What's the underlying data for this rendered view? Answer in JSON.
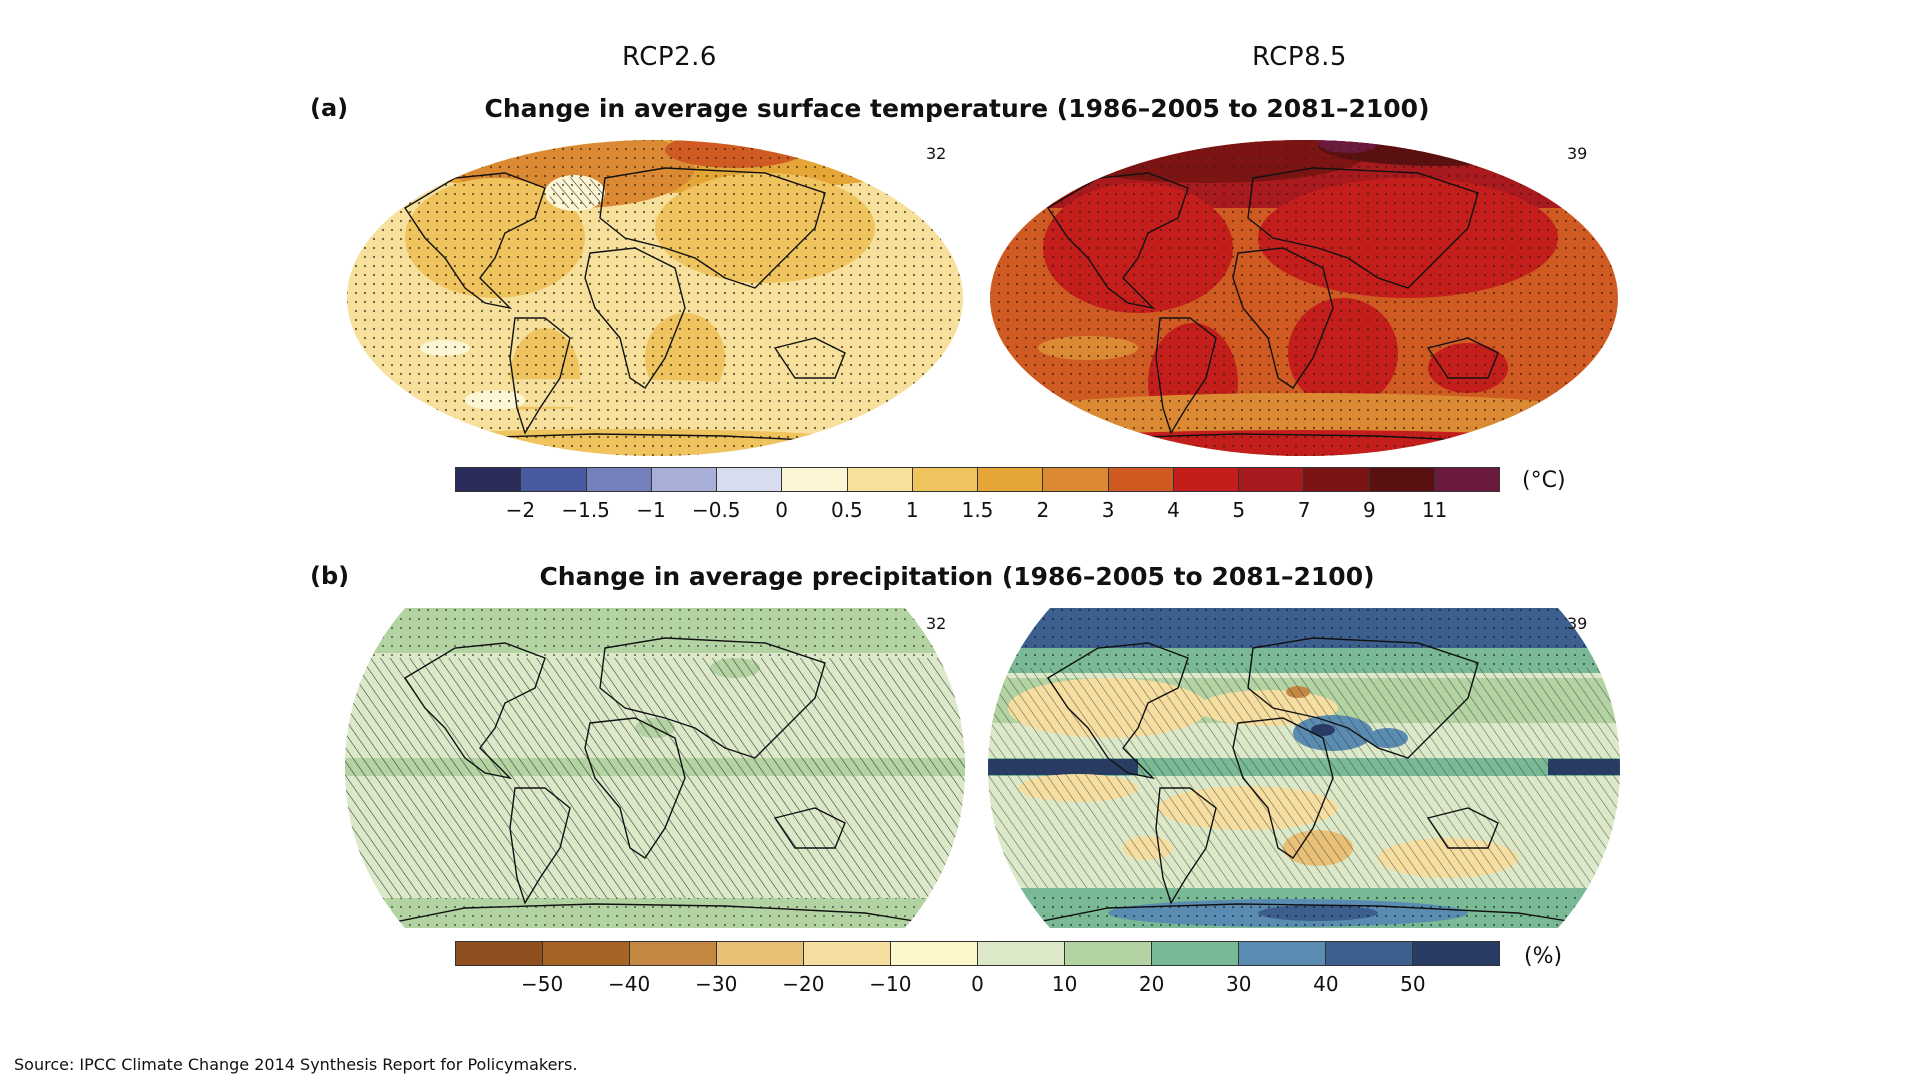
{
  "scenarios": {
    "left": "RCP2.6",
    "right": "RCP8.5"
  },
  "panel_a": {
    "letter": "(a)",
    "title": "Change in average surface temperature (1986–2005 to 2081–2100)",
    "left_count": "32",
    "right_count": "39",
    "unit": "(°C)",
    "colors": [
      "#2a2d5c",
      "#4a5aa0",
      "#7480bb",
      "#a8b0da",
      "#d8dcef",
      "#fdf6d4",
      "#f6e09c",
      "#efc45f",
      "#e6a637",
      "#db8a33",
      "#cf5a22",
      "#c41e1c",
      "#a81a1d",
      "#7d1414",
      "#5a1010",
      "#6b1a3e"
    ],
    "ticks": [
      "−2",
      "−1.5",
      "−1",
      "−0.5",
      "0",
      "0.5",
      "1",
      "1.5",
      "2",
      "3",
      "4",
      "5",
      "7",
      "9",
      "11"
    ]
  },
  "panel_b": {
    "letter": "(b)",
    "title": "Change in average precipitation (1986–2005 to 2081–2100)",
    "left_count": "32",
    "right_count": "39",
    "unit": "(%)",
    "colors": [
      "#8f4f1e",
      "#a86424",
      "#c48842",
      "#e8c177",
      "#f5dea0",
      "#fdf7cc",
      "#dbe9c9",
      "#b3d3a3",
      "#79b996",
      "#5a8bb0",
      "#3c5f8e",
      "#283c66"
    ],
    "ticks": [
      "−50",
      "−40",
      "−30",
      "−20",
      "−10",
      "0",
      "10",
      "20",
      "30",
      "40",
      "50"
    ]
  },
  "source": "Source: IPCC Climate Change 2014 Synthesis Report for Policymakers."
}
